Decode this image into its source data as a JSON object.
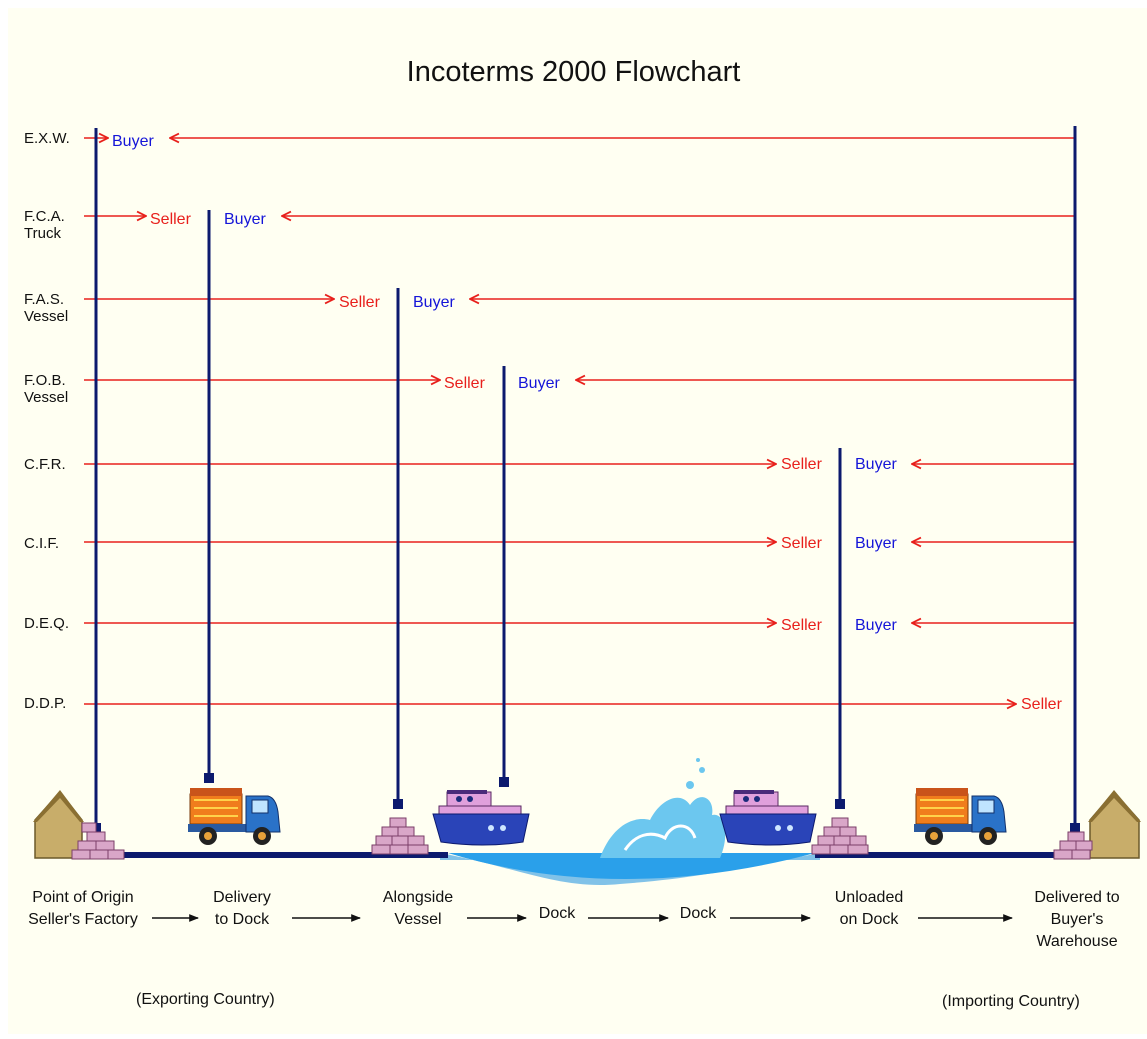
{
  "title": "Incoterms 2000 Flowchart",
  "colors": {
    "seller": "#e8201c",
    "buyer": "#1515d8",
    "post": "#0c1a6e",
    "arrow": "#e8201c",
    "ground": "#0c1a6e",
    "water": "#1a8fe0"
  },
  "terms": [
    {
      "label": "E.X.W.",
      "seller_label": "",
      "buyer_label": "Buyer"
    },
    {
      "label": "F.C.A.\nTruck",
      "seller_label": "Seller",
      "buyer_label": "Buyer"
    },
    {
      "label": "F.A.S.\nVessel",
      "seller_label": "Seller",
      "buyer_label": "Buyer"
    },
    {
      "label": "F.O.B.\nVessel",
      "seller_label": "Seller",
      "buyer_label": "Buyer"
    },
    {
      "label": "C.F.R.",
      "seller_label": "Seller",
      "buyer_label": "Buyer"
    },
    {
      "label": "C.I.F.",
      "seller_label": "Seller",
      "buyer_label": "Buyer"
    },
    {
      "label": "D.E.Q.",
      "seller_label": "Seller",
      "buyer_label": "Buyer"
    },
    {
      "label": "D.D.P.",
      "seller_label": "Seller",
      "buyer_label": ""
    }
  ],
  "stages": [
    {
      "label": "Point of Origin\nSeller's Factory",
      "icon": "house-icon"
    },
    {
      "label": "Delivery\nto Dock",
      "icon": "truck-icon"
    },
    {
      "label": "Alongside\nVessel",
      "icon": "cargo-icon"
    },
    {
      "label": "Dock",
      "icon": "ship-icon"
    },
    {
      "label": "Dock",
      "icon": "ship-icon"
    },
    {
      "label": "Unloaded\non Dock",
      "icon": "cargo-icon"
    },
    {
      "label": "Delivered to\nBuyer's\nWarehouse",
      "icon": "house-icon"
    }
  ],
  "countries": {
    "exporting": "(Exporting Country)",
    "importing": "(Importing Country)"
  }
}
